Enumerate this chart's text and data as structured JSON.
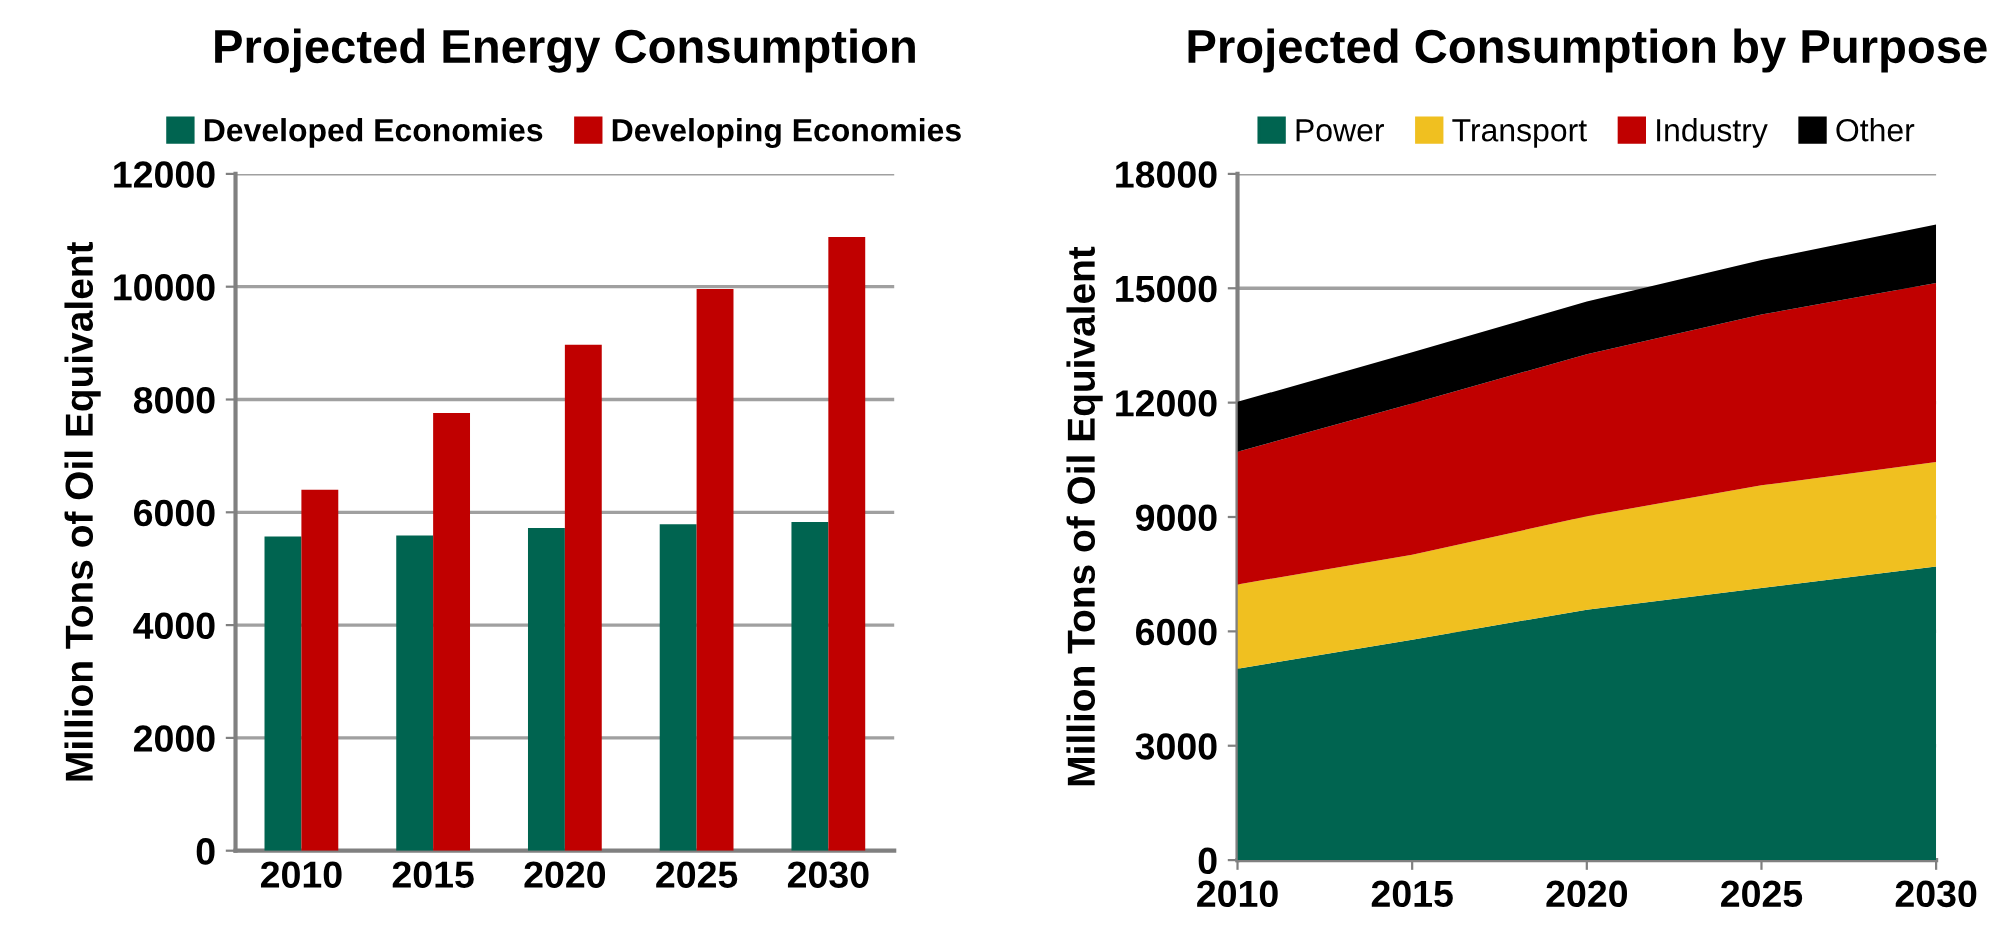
{
  "chart_data": [
    {
      "type": "bar",
      "title": "Projected Energy Consumption",
      "ylabel": "Million Tons of Oil Equivalent",
      "categories": [
        "2010",
        "2015",
        "2020",
        "2025",
        "2030"
      ],
      "series": [
        {
          "name": "Developed Economies",
          "color": "#006450",
          "values": [
            5570,
            5590,
            5720,
            5790,
            5830
          ]
        },
        {
          "name": "Developing Economies",
          "color": "#c00000",
          "values": [
            6400,
            7760,
            8970,
            9960,
            10880
          ]
        }
      ],
      "ylim": [
        0,
        12000
      ],
      "yticks": [
        0,
        2000,
        4000,
        6000,
        8000,
        10000,
        12000
      ],
      "grid": "y",
      "legend": "top"
    },
    {
      "type": "area",
      "stacked": true,
      "title": "Projected Consumption by Purpose",
      "ylabel": "Million Tons of Oil Equivalent",
      "x": [
        2010,
        2015,
        2020,
        2025,
        2030
      ],
      "series": [
        {
          "name": "Power",
          "color": "#006450",
          "values": [
            5020,
            5780,
            6570,
            7140,
            7700
          ]
        },
        {
          "name": "Transport",
          "color": "#f0c020",
          "values": [
            2210,
            2230,
            2450,
            2690,
            2740
          ]
        },
        {
          "name": "Industry",
          "color": "#c00000",
          "values": [
            3480,
            3970,
            4250,
            4480,
            4700
          ]
        },
        {
          "name": "Other",
          "color": "#000000",
          "values": [
            1310,
            1340,
            1380,
            1430,
            1530
          ]
        }
      ],
      "xlim": [
        2010,
        2030
      ],
      "xticks": [
        2010,
        2015,
        2020,
        2025,
        2030
      ],
      "ylim": [
        0,
        18000
      ],
      "yticks": [
        0,
        3000,
        6000,
        9000,
        12000,
        15000,
        18000
      ],
      "grid": "y",
      "legend": "top"
    }
  ]
}
